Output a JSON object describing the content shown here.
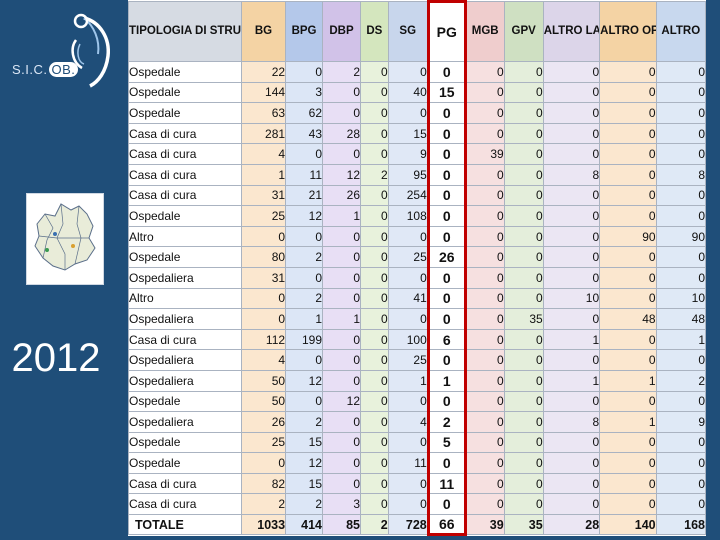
{
  "logo": {
    "text_prefix": "S.I.C.",
    "text_badge": "OB."
  },
  "year": "2012",
  "table": {
    "headers": [
      {
        "label": "TIPOLOGIA DI STRUTTURA",
        "cls": "c0"
      },
      {
        "label": "BG",
        "cls": "bg"
      },
      {
        "label": "BPG",
        "cls": "bpg"
      },
      {
        "label": "DBP",
        "cls": "dbp"
      },
      {
        "label": "DS",
        "cls": "ds"
      },
      {
        "label": "SG",
        "cls": "sg"
      },
      {
        "label": "PG",
        "cls": "pg"
      },
      {
        "label": "MGB",
        "cls": "mgb"
      },
      {
        "label": "GPV",
        "cls": "gpv"
      },
      {
        "label": "ALTRO LAPARO",
        "cls": "al"
      },
      {
        "label": "ALTRO OPEN",
        "cls": "ao"
      },
      {
        "label": "ALTRO",
        "cls": "alt"
      }
    ],
    "rows": [
      [
        "Ospedale",
        "22",
        "0",
        "2",
        "0",
        "0",
        "0",
        "0",
        "0",
        "0",
        "0",
        "0"
      ],
      [
        "Ospedale",
        "144",
        "3",
        "0",
        "0",
        "40",
        "15",
        "0",
        "0",
        "0",
        "0",
        "0"
      ],
      [
        "Ospedale",
        "63",
        "62",
        "0",
        "0",
        "0",
        "0",
        "0",
        "0",
        "0",
        "0",
        "0"
      ],
      [
        "Casa di cura",
        "281",
        "43",
        "28",
        "0",
        "15",
        "0",
        "0",
        "0",
        "0",
        "0",
        "0"
      ],
      [
        "Casa di cura",
        "4",
        "0",
        "0",
        "0",
        "9",
        "0",
        "39",
        "0",
        "0",
        "0",
        "0"
      ],
      [
        "Casa di cura",
        "1",
        "11",
        "12",
        "2",
        "95",
        "0",
        "0",
        "0",
        "8",
        "0",
        "8"
      ],
      [
        "Casa di cura",
        "31",
        "21",
        "26",
        "0",
        "254",
        "0",
        "0",
        "0",
        "0",
        "0",
        "0"
      ],
      [
        "Ospedale",
        "25",
        "12",
        "1",
        "0",
        "108",
        "0",
        "0",
        "0",
        "0",
        "0",
        "0"
      ],
      [
        "Altro",
        "0",
        "0",
        "0",
        "0",
        "0",
        "0",
        "0",
        "0",
        "0",
        "90",
        "90"
      ],
      [
        "Ospedale",
        "80",
        "2",
        "0",
        "0",
        "25",
        "26",
        "0",
        "0",
        "0",
        "0",
        "0"
      ],
      [
        "Ospedaliera",
        "31",
        "0",
        "0",
        "0",
        "0",
        "0",
        "0",
        "0",
        "0",
        "0",
        "0"
      ],
      [
        "Altro",
        "0",
        "2",
        "0",
        "0",
        "41",
        "0",
        "0",
        "0",
        "10",
        "0",
        "10"
      ],
      [
        "Ospedaliera",
        "0",
        "1",
        "1",
        "0",
        "0",
        "0",
        "0",
        "35",
        "0",
        "48",
        "48"
      ],
      [
        "Casa di cura",
        "112",
        "199",
        "0",
        "0",
        "100",
        "6",
        "0",
        "0",
        "1",
        "0",
        "1"
      ],
      [
        "Ospedaliera",
        "4",
        "0",
        "0",
        "0",
        "25",
        "0",
        "0",
        "0",
        "0",
        "0",
        "0"
      ],
      [
        "Ospedaliera",
        "50",
        "12",
        "0",
        "0",
        "1",
        "1",
        "0",
        "0",
        "1",
        "1",
        "2"
      ],
      [
        "Ospedale",
        "50",
        "0",
        "12",
        "0",
        "0",
        "0",
        "0",
        "0",
        "0",
        "0",
        "0"
      ],
      [
        "Ospedaliera",
        "26",
        "2",
        "0",
        "0",
        "4",
        "2",
        "0",
        "0",
        "8",
        "1",
        "9"
      ],
      [
        "Ospedale",
        "25",
        "15",
        "0",
        "0",
        "0",
        "5",
        "0",
        "0",
        "0",
        "0",
        "0"
      ],
      [
        "Ospedale",
        "0",
        "12",
        "0",
        "0",
        "11",
        "0",
        "0",
        "0",
        "0",
        "0",
        "0"
      ],
      [
        "Casa di cura",
        "82",
        "15",
        "0",
        "0",
        "0",
        "11",
        "0",
        "0",
        "0",
        "0",
        "0"
      ],
      [
        "Casa di cura",
        "2",
        "2",
        "3",
        "0",
        "0",
        "0",
        "0",
        "0",
        "0",
        "0",
        "0"
      ]
    ],
    "total": [
      "TOTALE",
      "1033",
      "414",
      "85",
      "2",
      "728",
      "66",
      "39",
      "35",
      "28",
      "140",
      "168"
    ]
  }
}
